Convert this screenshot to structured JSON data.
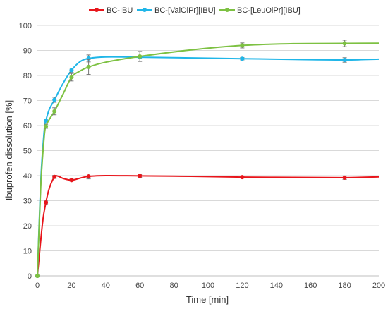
{
  "chart_data": {
    "type": "line",
    "title": "",
    "xlabel": "Time [min]",
    "ylabel": "Ibuprofen dissolution [%]",
    "xlim": [
      0,
      200
    ],
    "ylim": [
      0,
      100
    ],
    "xticks": [
      0,
      20,
      40,
      60,
      80,
      100,
      120,
      140,
      160,
      180,
      200
    ],
    "yticks": [
      0,
      10,
      20,
      30,
      40,
      50,
      60,
      70,
      80,
      90,
      100
    ],
    "grid": "horizontal",
    "legend_position": "top",
    "series": [
      {
        "name": "BC-IBU",
        "color": "#e8151b",
        "x": [
          0,
          5,
          10,
          20,
          30,
          60,
          120,
          180
        ],
        "y": [
          0,
          29.3,
          39.5,
          38.2,
          39.7,
          39.9,
          39.4,
          39.2
        ],
        "err": [
          0,
          0.6,
          0.6,
          0.4,
          1.0,
          0.6,
          0.4,
          0.7
        ],
        "curve": [
          [
            0,
            0
          ],
          [
            3,
            21
          ],
          [
            5,
            29.3
          ],
          [
            7,
            35
          ],
          [
            10,
            39.5
          ],
          [
            12,
            39.8
          ],
          [
            15,
            38.9
          ],
          [
            20,
            38.2
          ],
          [
            25,
            39.0
          ],
          [
            30,
            39.7
          ],
          [
            40,
            40.0
          ],
          [
            60,
            39.9
          ],
          [
            90,
            39.7
          ],
          [
            120,
            39.4
          ],
          [
            150,
            39.3
          ],
          [
            180,
            39.2
          ],
          [
            200,
            39.5
          ]
        ]
      },
      {
        "name": "BC-[ValOiPr][IBU]",
        "color": "#20b6e8",
        "x": [
          0,
          5,
          10,
          20,
          30,
          60,
          120,
          180
        ],
        "y": [
          0,
          62.0,
          70.3,
          82.1,
          86.8,
          87.3,
          86.7,
          86.2
        ],
        "err": [
          0,
          0.6,
          1.0,
          0.8,
          1.4,
          0.6,
          0.5,
          0.9
        ],
        "curve": [
          [
            0,
            0
          ],
          [
            2,
            38
          ],
          [
            4,
            58
          ],
          [
            5,
            62
          ],
          [
            7,
            66.5
          ],
          [
            10,
            70.3
          ],
          [
            15,
            76.8
          ],
          [
            20,
            82.1
          ],
          [
            25,
            85.5
          ],
          [
            30,
            86.8
          ],
          [
            40,
            87.4
          ],
          [
            60,
            87.3
          ],
          [
            90,
            87.0
          ],
          [
            120,
            86.7
          ],
          [
            150,
            86.4
          ],
          [
            180,
            86.2
          ],
          [
            200,
            86.5
          ]
        ]
      },
      {
        "name": "BC-[LeuOiPr][IBU]",
        "color": "#7dc142",
        "x": [
          0,
          5,
          10,
          20,
          30,
          60,
          120,
          180
        ],
        "y": [
          0,
          59.7,
          65.7,
          79.3,
          83.4,
          87.6,
          92.0,
          92.8
        ],
        "err": [
          0,
          0.8,
          1.4,
          1.5,
          3.0,
          2.0,
          1.0,
          1.3
        ],
        "curve": [
          [
            0,
            0
          ],
          [
            2,
            36
          ],
          [
            4,
            55.5
          ],
          [
            5,
            59.7
          ],
          [
            7,
            62.5
          ],
          [
            10,
            65.7
          ],
          [
            15,
            72.5
          ],
          [
            20,
            79.3
          ],
          [
            25,
            81.8
          ],
          [
            30,
            83.4
          ],
          [
            40,
            85.3
          ],
          [
            60,
            87.6
          ],
          [
            90,
            90.2
          ],
          [
            120,
            92.0
          ],
          [
            150,
            92.7
          ],
          [
            180,
            92.8
          ],
          [
            200,
            92.9
          ]
        ]
      }
    ]
  }
}
